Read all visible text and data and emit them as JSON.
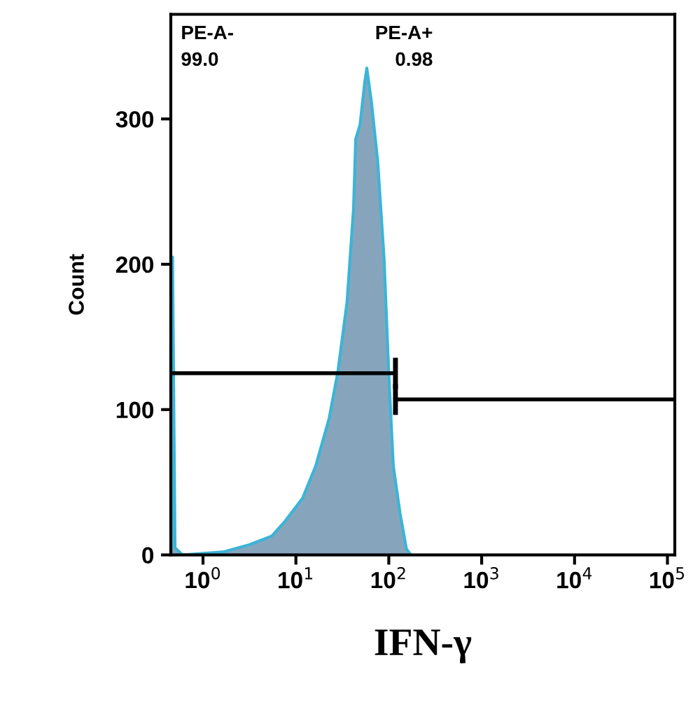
{
  "chart_data": {
    "type": "area",
    "xlabel": "IFN-γ",
    "ylabel": "Count",
    "log": "x",
    "xlim": [
      0.45,
      120000
    ],
    "xticks": [
      {
        "value": 1,
        "label": "10$^{0}$"
      },
      {
        "value": 10,
        "label": "10$^{1}$"
      },
      {
        "value": 100,
        "label": "10$^{2}$"
      },
      {
        "value": 1000,
        "label": "10$^{3}$"
      },
      {
        "value": 10000,
        "label": "10$^{4}$"
      },
      {
        "value": 100000,
        "label": "10$^{5}$"
      }
    ],
    "ylim": [
      0,
      372
    ],
    "yticks": [
      0,
      100,
      200,
      300
    ],
    "grid": false,
    "legend": false,
    "series": [
      {
        "color": "#86a5bd",
        "x": [
          0.46,
          0.47,
          0.5,
          0.6,
          1.64,
          3.16,
          5.5,
          7.6,
          11.8,
          16.3,
          22.8,
          28.3,
          35.5,
          41.7,
          44,
          49,
          55,
          58,
          65,
          76,
          89,
          100,
          112,
          132,
          155,
          173
        ],
        "values": [
          0,
          205,
          5,
          0,
          2,
          7,
          13,
          23,
          39,
          61,
          94,
          126,
          174,
          238,
          286,
          296,
          325,
          335,
          312,
          271,
          204,
          125,
          61,
          29,
          4,
          0
        ]
      },
      {
        "type": "line",
        "color": "#000000",
        "x": [
          0.45,
          118
        ],
        "values": [
          125,
          125
        ]
      },
      {
        "type": "line",
        "color": "#000000",
        "x": [
          118,
          120000
        ],
        "values": [
          107,
          107
        ]
      }
    ],
    "annotations": [
      "PE-A-\n99.0",
      "PE-A+\n0.98"
    ]
  }
}
